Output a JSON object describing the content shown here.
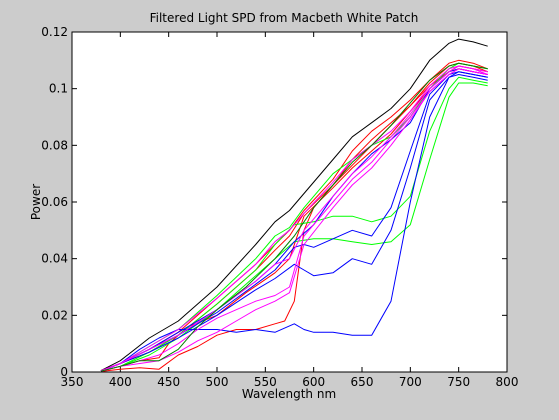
{
  "chart_data": {
    "type": "line",
    "title": "Filtered Light SPD from Macbeth White Patch",
    "xlabel": "Wavelength nm",
    "ylabel": "Power",
    "xlim": [
      350,
      800
    ],
    "ylim": [
      0,
      0.12
    ],
    "xticks": [
      350,
      400,
      450,
      500,
      550,
      600,
      650,
      700,
      750,
      800
    ],
    "yticks": [
      0,
      0.02,
      0.04,
      0.06,
      0.08,
      0.1,
      0.12
    ],
    "xtick_labels": [
      "350",
      "400",
      "450",
      "500",
      "550",
      "600",
      "650",
      "700",
      "750",
      "800"
    ],
    "ytick_labels": [
      "0",
      "0.02",
      "0.04",
      "0.06",
      "0.08",
      "0.1",
      "0.12"
    ],
    "grid": false,
    "background": "#ffffff",
    "series": [
      {
        "color": "#000000",
        "x": [
          380,
          400,
          430,
          460,
          500,
          540,
          560,
          575,
          590,
          620,
          640,
          660,
          680,
          700,
          720,
          740,
          750,
          765,
          780
        ],
        "y": [
          0.0005,
          0.004,
          0.012,
          0.018,
          0.03,
          0.045,
          0.053,
          0.057,
          0.063,
          0.075,
          0.083,
          0.088,
          0.093,
          0.1,
          0.11,
          0.116,
          0.1175,
          0.1165,
          0.115
        ]
      },
      {
        "color": "#ff0000",
        "x": [
          380,
          400,
          430,
          460,
          500,
          540,
          560,
          575,
          590,
          620,
          640,
          660,
          680,
          700,
          720,
          740,
          750,
          765,
          780
        ],
        "y": [
          0.0005,
          0.003,
          0.008,
          0.014,
          0.026,
          0.038,
          0.045,
          0.05,
          0.057,
          0.068,
          0.078,
          0.085,
          0.09,
          0.096,
          0.103,
          0.109,
          0.11,
          0.109,
          0.107
        ]
      },
      {
        "color": "#ff0000",
        "x": [
          380,
          400,
          430,
          460,
          500,
          540,
          560,
          575,
          590,
          620,
          640,
          660,
          680,
          700,
          720,
          740,
          750,
          765,
          780
        ],
        "y": [
          0.0004,
          0.003,
          0.007,
          0.013,
          0.024,
          0.036,
          0.043,
          0.048,
          0.056,
          0.066,
          0.075,
          0.082,
          0.088,
          0.094,
          0.102,
          0.108,
          0.109,
          0.108,
          0.106
        ]
      },
      {
        "color": "#ff0000",
        "x": [
          380,
          400,
          420,
          440,
          450,
          470,
          500,
          530,
          560,
          575,
          590,
          620,
          640,
          660,
          680,
          700,
          720,
          740,
          750,
          765,
          780
        ],
        "y": [
          0.0003,
          0.002,
          0.004,
          0.005,
          0.01,
          0.016,
          0.02,
          0.028,
          0.035,
          0.04,
          0.055,
          0.065,
          0.072,
          0.078,
          0.084,
          0.092,
          0.1,
          0.106,
          0.108,
          0.107,
          0.106
        ]
      },
      {
        "color": "#ff0000",
        "x": [
          380,
          400,
          420,
          440,
          460,
          480,
          500,
          520,
          540,
          560,
          570,
          580,
          590,
          600,
          620,
          640,
          660,
          680,
          700,
          720,
          740,
          750,
          765,
          780
        ],
        "y": [
          0.0002,
          0.001,
          0.0015,
          0.001,
          0.006,
          0.009,
          0.013,
          0.015,
          0.015,
          0.017,
          0.018,
          0.025,
          0.05,
          0.058,
          0.066,
          0.073,
          0.08,
          0.087,
          0.094,
          0.101,
          0.106,
          0.107,
          0.106,
          0.105
        ]
      },
      {
        "color": "#00ff00",
        "x": [
          380,
          400,
          430,
          460,
          500,
          540,
          560,
          575,
          590,
          620,
          640,
          660,
          680,
          700,
          720,
          740,
          750,
          765,
          780
        ],
        "y": [
          0.0004,
          0.003,
          0.009,
          0.015,
          0.027,
          0.04,
          0.048,
          0.051,
          0.058,
          0.07,
          0.075,
          0.08,
          0.083,
          0.09,
          0.1,
          0.107,
          0.109,
          0.108,
          0.107
        ]
      },
      {
        "color": "#00ff00",
        "x": [
          380,
          400,
          430,
          460,
          500,
          540,
          560,
          580,
          600,
          620,
          640,
          660,
          680,
          700,
          720,
          740,
          750,
          765,
          780
        ],
        "y": [
          0.0003,
          0.002,
          0.007,
          0.013,
          0.024,
          0.036,
          0.045,
          0.052,
          0.053,
          0.055,
          0.055,
          0.053,
          0.055,
          0.062,
          0.085,
          0.1,
          0.104,
          0.103,
          0.102
        ]
      },
      {
        "color": "#00ff00",
        "x": [
          380,
          400,
          430,
          460,
          500,
          540,
          560,
          580,
          600,
          620,
          640,
          660,
          680,
          700,
          720,
          740,
          750,
          765,
          780
        ],
        "y": [
          0.0003,
          0.002,
          0.006,
          0.012,
          0.022,
          0.034,
          0.04,
          0.046,
          0.047,
          0.047,
          0.046,
          0.045,
          0.046,
          0.052,
          0.075,
          0.097,
          0.102,
          0.102,
          0.101
        ]
      },
      {
        "color": "#0000ff",
        "x": [
          380,
          400,
          430,
          460,
          500,
          540,
          560,
          580,
          600,
          620,
          640,
          660,
          680,
          700,
          720,
          740,
          750,
          765,
          780
        ],
        "y": [
          0.0004,
          0.003,
          0.008,
          0.014,
          0.022,
          0.032,
          0.038,
          0.046,
          0.052,
          0.062,
          0.07,
          0.077,
          0.082,
          0.088,
          0.1,
          0.106,
          0.107,
          0.106,
          0.105
        ]
      },
      {
        "color": "#0000ff",
        "x": [
          380,
          400,
          430,
          460,
          500,
          540,
          560,
          580,
          590,
          600,
          620,
          640,
          660,
          680,
          700,
          720,
          740,
          750,
          765,
          780
        ],
        "y": [
          0.0004,
          0.003,
          0.008,
          0.013,
          0.021,
          0.031,
          0.036,
          0.044,
          0.045,
          0.044,
          0.047,
          0.05,
          0.048,
          0.058,
          0.078,
          0.098,
          0.105,
          0.106,
          0.105,
          0.104
        ]
      },
      {
        "color": "#0000ff",
        "x": [
          380,
          400,
          430,
          460,
          500,
          540,
          560,
          580,
          590,
          600,
          620,
          640,
          660,
          680,
          700,
          720,
          740,
          750,
          765,
          780
        ],
        "y": [
          0.0003,
          0.003,
          0.007,
          0.012,
          0.02,
          0.029,
          0.033,
          0.038,
          0.036,
          0.034,
          0.035,
          0.04,
          0.038,
          0.05,
          0.072,
          0.096,
          0.104,
          0.105,
          0.104,
          0.103
        ]
      },
      {
        "color": "#0000ff",
        "x": [
          380,
          400,
          420,
          440,
          460,
          480,
          500,
          520,
          540,
          560,
          580,
          590,
          600,
          620,
          640,
          660,
          680,
          700,
          720,
          740,
          750,
          765,
          780
        ],
        "y": [
          0.0003,
          0.003,
          0.008,
          0.012,
          0.015,
          0.015,
          0.015,
          0.014,
          0.015,
          0.014,
          0.017,
          0.015,
          0.014,
          0.014,
          0.013,
          0.013,
          0.025,
          0.06,
          0.09,
          0.104,
          0.106,
          0.105,
          0.104
        ]
      },
      {
        "color": "#ff00ff",
        "x": [
          380,
          400,
          430,
          460,
          500,
          540,
          560,
          575,
          590,
          620,
          640,
          660,
          680,
          700,
          720,
          740,
          750,
          765,
          780
        ],
        "y": [
          0.0004,
          0.003,
          0.009,
          0.015,
          0.026,
          0.038,
          0.046,
          0.05,
          0.056,
          0.067,
          0.075,
          0.08,
          0.085,
          0.092,
          0.101,
          0.107,
          0.108,
          0.107,
          0.106
        ]
      },
      {
        "color": "#ff00ff",
        "x": [
          380,
          400,
          430,
          460,
          500,
          540,
          560,
          575,
          590,
          620,
          640,
          660,
          680,
          700,
          720,
          740,
          750,
          765,
          780
        ],
        "y": [
          0.0004,
          0.003,
          0.008,
          0.013,
          0.022,
          0.032,
          0.038,
          0.04,
          0.05,
          0.062,
          0.07,
          0.076,
          0.083,
          0.091,
          0.1,
          0.106,
          0.108,
          0.107,
          0.105
        ]
      },
      {
        "color": "#ff00ff",
        "x": [
          380,
          400,
          420,
          440,
          460,
          480,
          500,
          520,
          540,
          560,
          575,
          590,
          620,
          640,
          660,
          680,
          700,
          720,
          740,
          750,
          765,
          780
        ],
        "y": [
          0.0003,
          0.002,
          0.004,
          0.006,
          0.01,
          0.015,
          0.019,
          0.022,
          0.025,
          0.027,
          0.03,
          0.048,
          0.06,
          0.068,
          0.074,
          0.082,
          0.09,
          0.099,
          0.105,
          0.107,
          0.106,
          0.105
        ]
      },
      {
        "color": "#ff00ff",
        "x": [
          380,
          400,
          420,
          440,
          460,
          480,
          500,
          520,
          540,
          560,
          575,
          590,
          620,
          640,
          660,
          680,
          700,
          720,
          740,
          750,
          765,
          780
        ],
        "y": [
          0.0003,
          0.002,
          0.003,
          0.004,
          0.007,
          0.011,
          0.014,
          0.018,
          0.022,
          0.025,
          0.028,
          0.045,
          0.058,
          0.066,
          0.072,
          0.08,
          0.089,
          0.099,
          0.105,
          0.107,
          0.106,
          0.105
        ]
      },
      {
        "color": "#008000",
        "x": [
          380,
          400,
          420,
          440,
          460,
          480,
          500,
          530,
          560,
          580,
          600,
          620,
          640,
          660,
          680,
          700,
          720,
          740,
          750,
          765,
          780
        ],
        "y": [
          0.0003,
          0.002,
          0.004,
          0.004,
          0.008,
          0.016,
          0.022,
          0.03,
          0.04,
          0.048,
          0.058,
          0.066,
          0.074,
          0.08,
          0.087,
          0.095,
          0.103,
          0.108,
          0.109,
          0.108,
          0.107
        ]
      }
    ]
  }
}
